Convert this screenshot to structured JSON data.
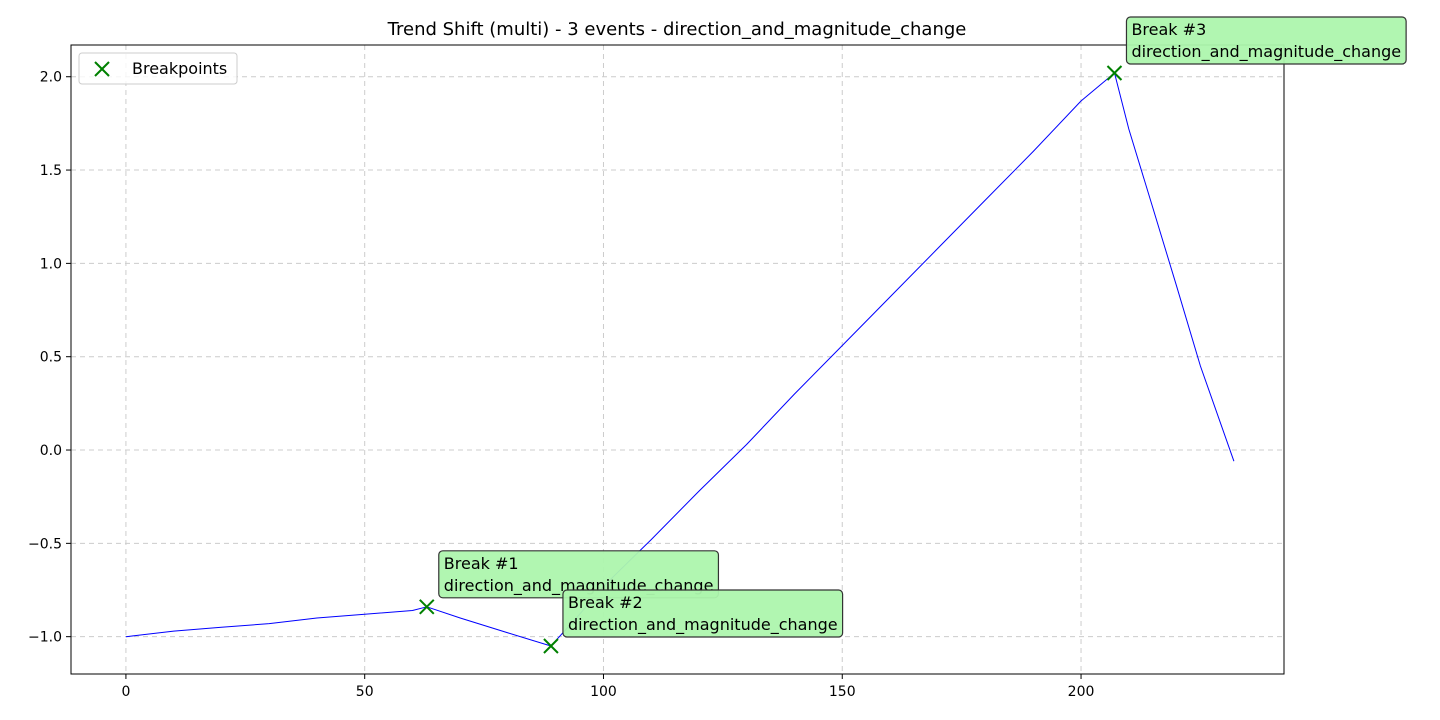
{
  "chart_data": {
    "type": "line",
    "title": "Trend Shift (multi) - 3 events - direction_and_magnitude_change",
    "xlabel": "",
    "ylabel": "",
    "xlim": [
      -11.5,
      242.5
    ],
    "ylim": [
      -1.2,
      2.17
    ],
    "xticks": [
      0,
      50,
      100,
      150,
      200
    ],
    "yticks": [
      -1.0,
      -0.5,
      0.0,
      0.5,
      1.0,
      1.5,
      2.0
    ],
    "ytick_labels": [
      "−1.0",
      "−0.5",
      "0.0",
      "0.5",
      "1.0",
      "1.5",
      "2.0"
    ],
    "grid": true,
    "legend": {
      "location": "upper-left",
      "entries": [
        "Breakpoints"
      ]
    },
    "series": [
      {
        "color": "#0000ff",
        "x": [
          0,
          10,
          20,
          30,
          40,
          50,
          60,
          63,
          70,
          80,
          89,
          95,
          100,
          110,
          120,
          130,
          140,
          150,
          160,
          170,
          180,
          190,
          200,
          207,
          210,
          215,
          220,
          225,
          232
        ],
        "y": [
          -1.0,
          -0.97,
          -0.95,
          -0.93,
          -0.9,
          -0.88,
          -0.86,
          -0.84,
          -0.9,
          -0.98,
          -1.05,
          -0.88,
          -0.73,
          -0.48,
          -0.22,
          0.03,
          0.3,
          0.56,
          0.82,
          1.08,
          1.34,
          1.6,
          1.87,
          2.02,
          1.72,
          1.3,
          0.88,
          0.45,
          -0.06
        ]
      }
    ],
    "breakpoints": {
      "name": "Breakpoints",
      "color": "#008000",
      "marker": "x",
      "points": [
        {
          "x": 63,
          "y": -0.84
        },
        {
          "x": 89,
          "y": -1.05
        },
        {
          "x": 207,
          "y": 2.02
        }
      ]
    },
    "annotations": [
      {
        "x": 63,
        "y": -0.84,
        "line1": "Break #1",
        "line2": "direction_and_magnitude_change"
      },
      {
        "x": 89,
        "y": -1.05,
        "line1": "Break #2",
        "line2": "direction_and_magnitude_change"
      },
      {
        "x": 207,
        "y": 2.02,
        "line1": "Break #3",
        "line2": "direction_and_magnitude_change"
      }
    ],
    "colors": {
      "annotation_fill": "#adf5ad",
      "annotation_border": "#333333",
      "grid": "#cccccc"
    }
  }
}
